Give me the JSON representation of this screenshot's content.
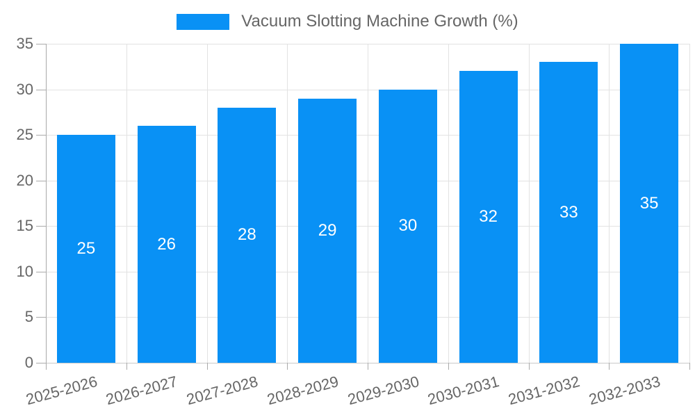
{
  "legend": {
    "label": "Vacuum Slotting Machine Growth (%)"
  },
  "chart_data": {
    "type": "bar",
    "title": "Vacuum Slotting Machine Growth (%)",
    "categories": [
      "2025-2026",
      "2026-2027",
      "2027-2028",
      "2028-2029",
      "2029-2030",
      "2030-2031",
      "2031-2032",
      "2032-2033"
    ],
    "values": [
      25,
      26,
      28,
      29,
      30,
      32,
      33,
      35
    ],
    "xlabel": "",
    "ylabel": "",
    "ylim": [
      0,
      35
    ],
    "yticks": [
      0,
      5,
      10,
      15,
      20,
      25,
      30,
      35
    ],
    "grid": true,
    "legend_position": "top",
    "bar_label_position": "center",
    "x_label_rotation_deg": -15,
    "colors": {
      "bar": "#0991F5",
      "grid": "#E2E2E2",
      "axis": "#AAAAAA",
      "baseline": "#C9C9C9",
      "tick_text": "#666666",
      "bar_label_text": "#FFFFFF"
    }
  }
}
